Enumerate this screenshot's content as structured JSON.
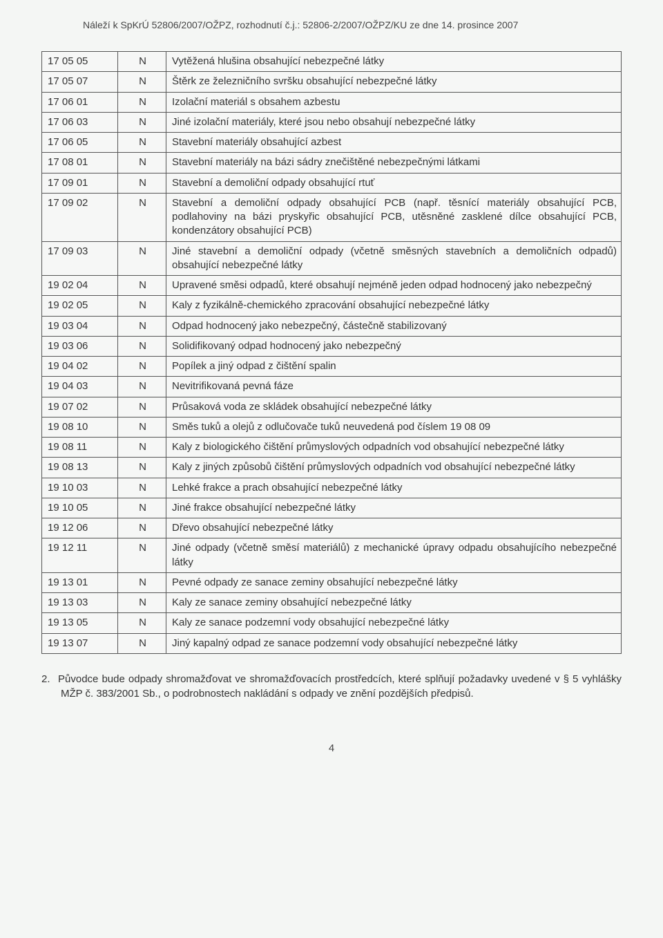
{
  "header": "Náleží k SpKrÚ 52806/2007/OŽPZ, rozhodnutí č.j.: 52806-2/2007/OŽPZ/KU ze dne 14. prosince 2007",
  "table": {
    "col_widths": {
      "code": 110,
      "flag": 70
    },
    "rows": [
      {
        "code": "17 05 05",
        "flag": "N",
        "desc": "Vytěžená hlušina obsahující nebezpečné látky"
      },
      {
        "code": "17 05 07",
        "flag": "N",
        "desc": "Štěrk ze železničního svršku obsahující nebezpečné látky"
      },
      {
        "code": "17 06 01",
        "flag": "N",
        "desc": "Izolační materiál s obsahem azbestu"
      },
      {
        "code": "17 06 03",
        "flag": "N",
        "desc": "Jiné izolační materiály, které jsou nebo obsahují nebezpečné látky"
      },
      {
        "code": "17 06 05",
        "flag": "N",
        "desc": "Stavební materiály obsahující azbest"
      },
      {
        "code": "17 08 01",
        "flag": "N",
        "desc": "Stavební materiály na bázi sádry znečištěné nebezpečnými látkami"
      },
      {
        "code": "17 09 01",
        "flag": "N",
        "desc": "Stavební a demoliční odpady obsahující rtuť"
      },
      {
        "code": "17 09 02",
        "flag": "N",
        "desc": "Stavební a demoliční odpady obsahující PCB (např. těsnící materiály obsahující PCB, podlahoviny na bázi pryskyřic obsahující PCB, utěsněné zasklené dílce obsahující PCB, kondenzátory obsahující PCB)"
      },
      {
        "code": "17 09 03",
        "flag": "N",
        "desc": "Jiné stavební a demoliční odpady (včetně směsných stavebních a demoličních odpadů) obsahující nebezpečné látky"
      },
      {
        "code": "19 02 04",
        "flag": "N",
        "desc": "Upravené směsi odpadů, které obsahují nejméně jeden odpad hodnocený jako nebezpečný"
      },
      {
        "code": "19 02 05",
        "flag": "N",
        "desc": "Kaly z fyzikálně-chemického zpracování obsahující nebezpečné látky"
      },
      {
        "code": "19 03 04",
        "flag": "N",
        "desc": "Odpad hodnocený jako nebezpečný, částečně stabilizovaný"
      },
      {
        "code": "19 03 06",
        "flag": "N",
        "desc": "Solidifikovaný odpad hodnocený jako nebezpečný"
      },
      {
        "code": "19 04 02",
        "flag": "N",
        "desc": "Popílek a jiný odpad z čištění spalin"
      },
      {
        "code": "19 04 03",
        "flag": "N",
        "desc": "Nevitrifikovaná pevná fáze"
      },
      {
        "code": "19 07 02",
        "flag": "N",
        "desc": "Průsaková voda ze skládek obsahující nebezpečné látky"
      },
      {
        "code": "19 08 10",
        "flag": "N",
        "desc": "Směs tuků a olejů z odlučovače tuků neuvedená pod číslem 19 08 09"
      },
      {
        "code": "19 08 11",
        "flag": "N",
        "desc": "Kaly z biologického čištění průmyslových odpadních vod obsahující nebezpečné látky"
      },
      {
        "code": "19 08 13",
        "flag": "N",
        "desc": "Kaly z jiných způsobů čištění průmyslových odpadních vod obsahující nebezpečné látky"
      },
      {
        "code": "19 10 03",
        "flag": "N",
        "desc": "Lehké frakce a prach obsahující nebezpečné látky"
      },
      {
        "code": "19 10 05",
        "flag": "N",
        "desc": "Jiné frakce obsahující nebezpečné látky"
      },
      {
        "code": "19 12 06",
        "flag": "N",
        "desc": "Dřevo obsahující nebezpečné látky"
      },
      {
        "code": "19 12 11",
        "flag": "N",
        "desc": "Jiné odpady (včetně směsí materiálů) z mechanické úpravy odpadu obsahujícího nebezpečné látky"
      },
      {
        "code": "19 13 01",
        "flag": "N",
        "desc": "Pevné odpady ze sanace zeminy obsahující nebezpečné látky"
      },
      {
        "code": "19 13 03",
        "flag": "N",
        "desc": "Kaly ze sanace zeminy obsahující nebezpečné látky"
      },
      {
        "code": "19 13 05",
        "flag": "N",
        "desc": "Kaly ze sanace podzemní vody obsahující nebezpečné látky"
      },
      {
        "code": "19 13 07",
        "flag": "N",
        "desc": "Jiný kapalný odpad ze sanace podzemní vody obsahující nebezpečné látky"
      }
    ]
  },
  "after_item": {
    "number": "2.",
    "text": "Původce bude odpady shromažďovat ve shromažďovacích prostředcích, které splňují požadavky uvedené v § 5 vyhlášky MŽP č. 383/2001 Sb., o podrobnostech nakládání s odpady ve znění pozdějších předpisů."
  },
  "pagenum": "4"
}
